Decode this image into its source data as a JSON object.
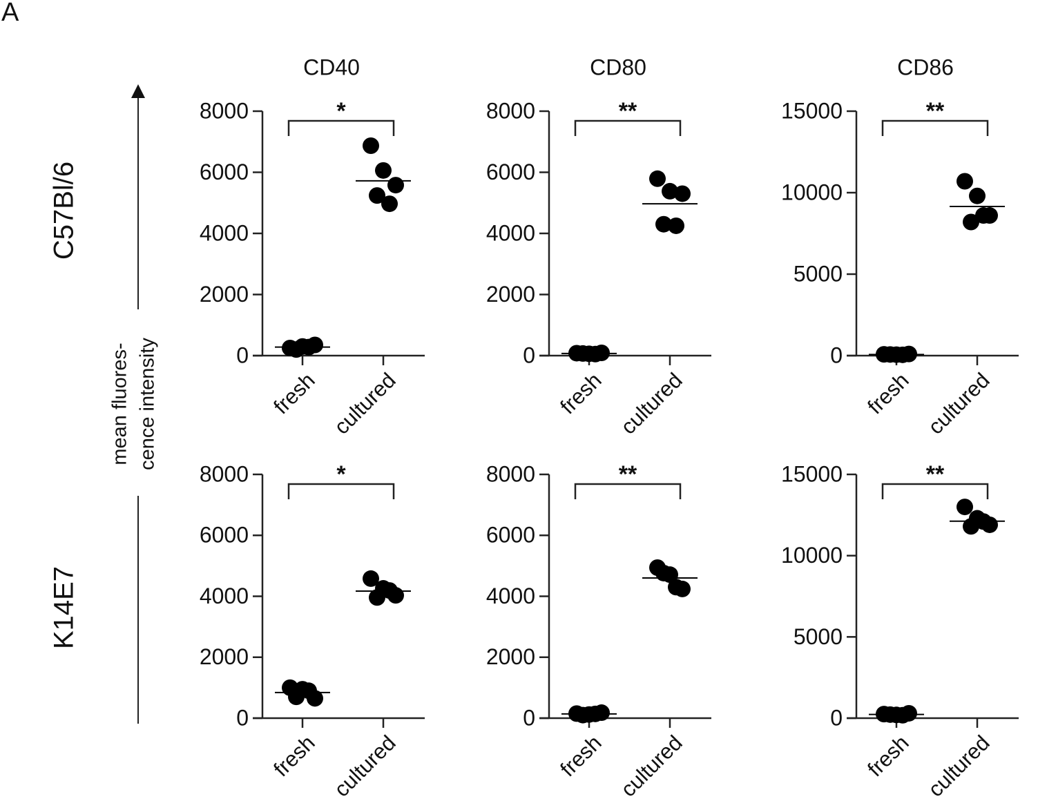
{
  "figure": {
    "panel_label": "A",
    "row_labels": [
      "C57Bl/6",
      "K14E7"
    ],
    "y_label": [
      "mean fluores-",
      "cence intensity"
    ]
  },
  "chart_data": [
    {
      "type": "dot",
      "title": "CD40",
      "categories": [
        "fresh",
        "cultured"
      ],
      "values": [
        [
          250,
          300,
          350,
          200,
          280
        ],
        [
          6870,
          6060,
          5580,
          5240,
          4970
        ]
      ],
      "means": [
        280,
        5720
      ],
      "annotation": "*",
      "ylim": [
        0,
        8000
      ],
      "yticks": [
        0,
        2000,
        4000,
        6000,
        8000
      ],
      "color": "#000000"
    },
    {
      "type": "dot",
      "title": "CD80",
      "categories": [
        "fresh",
        "cultured"
      ],
      "values": [
        [
          80,
          60,
          90,
          70,
          50
        ],
        [
          5790,
          5380,
          5300,
          4300,
          4250
        ]
      ],
      "means": [
        70,
        4970
      ],
      "annotation": "**",
      "ylim": [
        0,
        8000
      ],
      "yticks": [
        0,
        2000,
        4000,
        6000,
        8000
      ],
      "color": "#000000"
    },
    {
      "type": "dot",
      "title": "CD86",
      "categories": [
        "fresh",
        "cultured"
      ],
      "values": [
        [
          80,
          60,
          100,
          70,
          50
        ],
        [
          10700,
          9800,
          8600,
          8200,
          8600
        ]
      ],
      "means": [
        70,
        9150
      ],
      "annotation": "**",
      "ylim": [
        0,
        15000
      ],
      "yticks": [
        0,
        5000,
        10000,
        15000
      ],
      "color": "#000000"
    },
    {
      "type": "dot",
      "title": null,
      "categories": [
        "fresh",
        "cultured"
      ],
      "values": [
        [
          1000,
          950,
          650,
          700,
          900
        ],
        [
          4580,
          4260,
          4030,
          3960,
          4190
        ]
      ],
      "means": [
        840,
        4170
      ],
      "annotation": "*",
      "ylim": [
        0,
        8000
      ],
      "yticks": [
        0,
        2000,
        4000,
        6000,
        8000
      ],
      "color": "#000000"
    },
    {
      "type": "dot",
      "title": null,
      "categories": [
        "fresh",
        "cultured"
      ],
      "values": [
        [
          150,
          120,
          180,
          100,
          140
        ],
        [
          4940,
          4710,
          4240,
          4760,
          4300
        ]
      ],
      "means": [
        140,
        4600
      ],
      "annotation": "**",
      "ylim": [
        0,
        8000
      ],
      "yticks": [
        0,
        2000,
        4000,
        6000,
        8000
      ],
      "color": "#000000"
    },
    {
      "type": "dot",
      "title": null,
      "categories": [
        "fresh",
        "cultured"
      ],
      "values": [
        [
          250,
          200,
          300,
          220,
          180
        ],
        [
          13000,
          12300,
          11900,
          11800,
          12100
        ]
      ],
      "means": [
        230,
        12120
      ],
      "annotation": "**",
      "ylim": [
        0,
        15000
      ],
      "yticks": [
        0,
        5000,
        10000,
        15000
      ],
      "color": "#000000"
    }
  ]
}
